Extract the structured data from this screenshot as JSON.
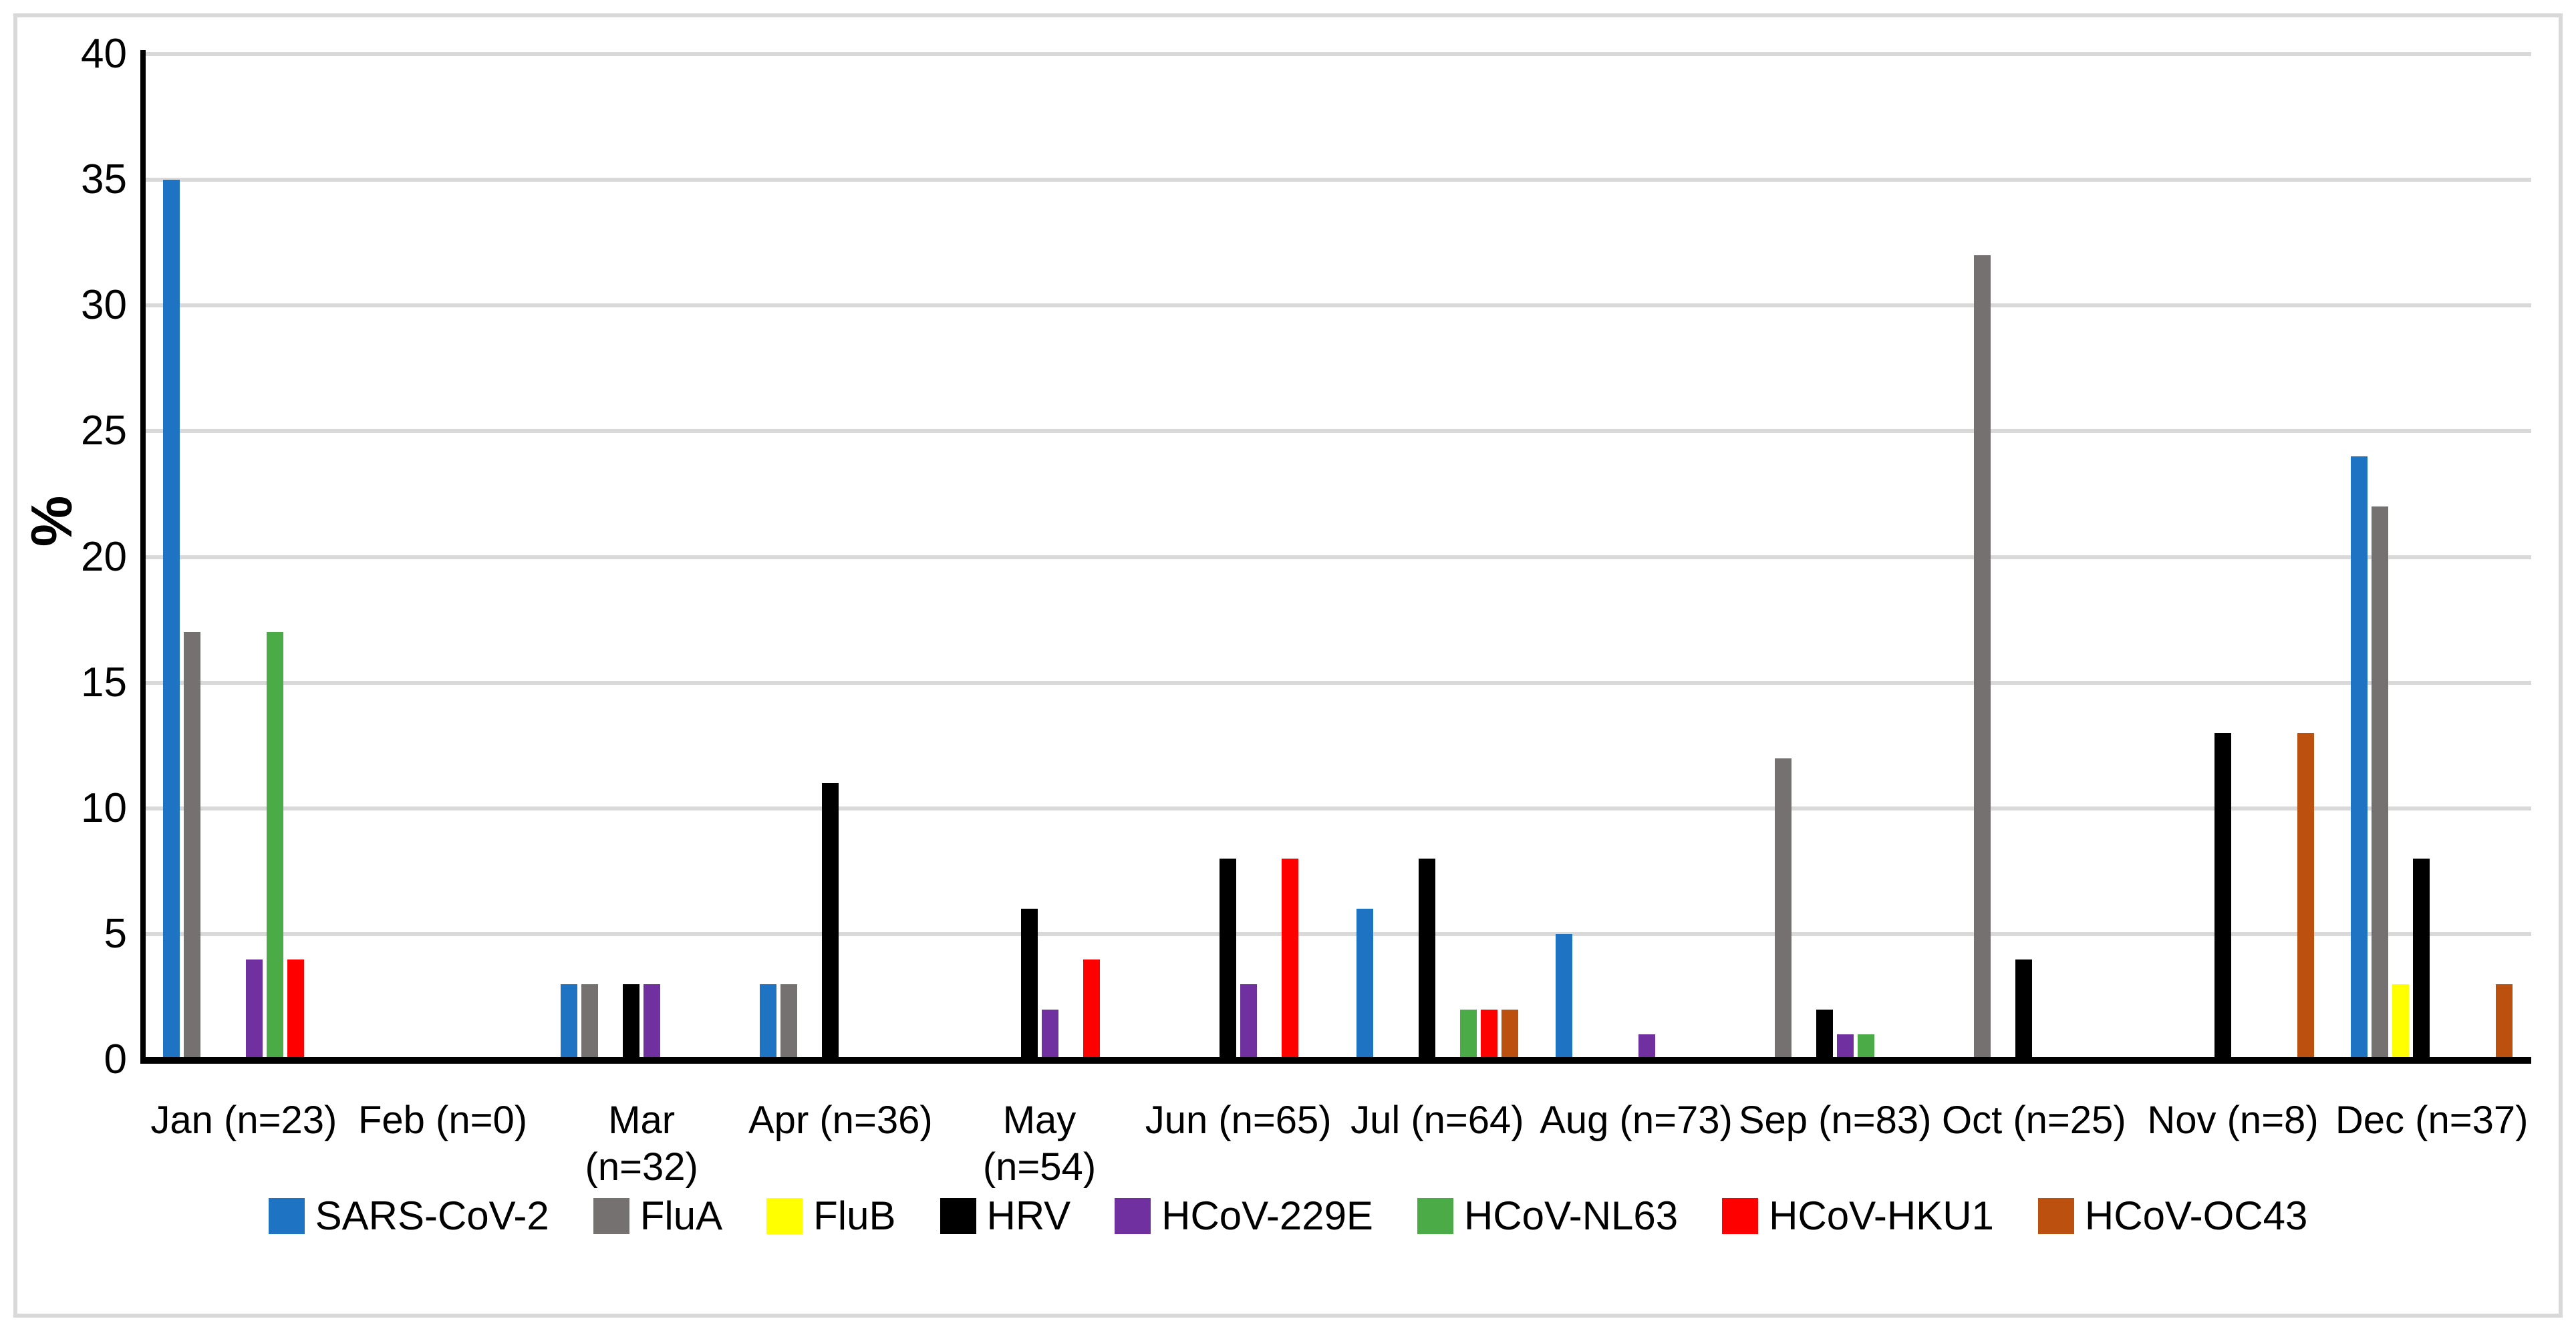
{
  "figure": {
    "background_color": "#ffffff",
    "border_color": "#d9d9d9",
    "axis_line_color": "#000000",
    "gridline_color": "#d9d9d9"
  },
  "chart_data": {
    "type": "bar",
    "title": "",
    "xlabel": "",
    "ylabel": "%",
    "ylim": [
      0,
      40
    ],
    "ytick_step": 5,
    "yticks": [
      "0",
      "5",
      "10",
      "15",
      "20",
      "25",
      "30",
      "35",
      "40"
    ],
    "grid": "horizontal",
    "legend_position": "bottom",
    "categories": [
      "Jan (n=23)",
      "Feb (n=0)",
      "Mar (n=32)",
      "Apr (n=36)",
      "May (n=54)",
      "Jun (n=65)",
      "Jul (n=64)",
      "Aug (n=73)",
      "Sep (n=83)",
      "Oct (n=25)",
      "Nov (n=8)",
      "Dec (n=37)"
    ],
    "category_lines": [
      [
        "Jan (n=23)"
      ],
      [
        "Feb (n=0)"
      ],
      [
        "Mar",
        "(n=32)"
      ],
      [
        "Apr (n=36)"
      ],
      [
        "May",
        "(n=54)"
      ],
      [
        "Jun (n=65)"
      ],
      [
        "Jul (n=64)"
      ],
      [
        "Aug (n=73)"
      ],
      [
        "Sep (n=83)"
      ],
      [
        "Oct (n=25)"
      ],
      [
        "Nov (n=8)"
      ],
      [
        "Dec (n=37)"
      ]
    ],
    "series": [
      {
        "name": "SARS-CoV-2",
        "color": "#1e73c2",
        "values": [
          35,
          0,
          3,
          3,
          0,
          0,
          6,
          5,
          0,
          0,
          0,
          24
        ]
      },
      {
        "name": "FluA",
        "color": "#767171",
        "values": [
          17,
          0,
          3,
          3,
          0,
          0,
          0,
          0,
          12,
          32,
          0,
          22
        ]
      },
      {
        "name": "FluB",
        "color": "#ffff00",
        "values": [
          0,
          0,
          0,
          0,
          0,
          0,
          0,
          0,
          0,
          0,
          0,
          3
        ]
      },
      {
        "name": "HRV",
        "color": "#000000",
        "values": [
          0,
          0,
          3,
          11,
          6,
          8,
          8,
          0,
          2,
          4,
          13,
          8
        ]
      },
      {
        "name": "HCoV-229E",
        "color": "#7030a0",
        "values": [
          4,
          0,
          3,
          0,
          2,
          3,
          0,
          1,
          1,
          0,
          0,
          0
        ]
      },
      {
        "name": "HCoV-NL63",
        "color": "#4bac47",
        "values": [
          17,
          0,
          0,
          0,
          0,
          0,
          2,
          0,
          1,
          0,
          0,
          0
        ]
      },
      {
        "name": "HCoV-HKU1",
        "color": "#ff0000",
        "values": [
          4,
          0,
          0,
          0,
          4,
          8,
          2,
          0,
          0,
          0,
          0,
          0
        ]
      },
      {
        "name": "HCoV-OC43",
        "color": "#bc500e",
        "values": [
          0,
          0,
          0,
          0,
          0,
          0,
          2,
          0,
          0,
          0,
          13,
          3
        ]
      }
    ]
  }
}
